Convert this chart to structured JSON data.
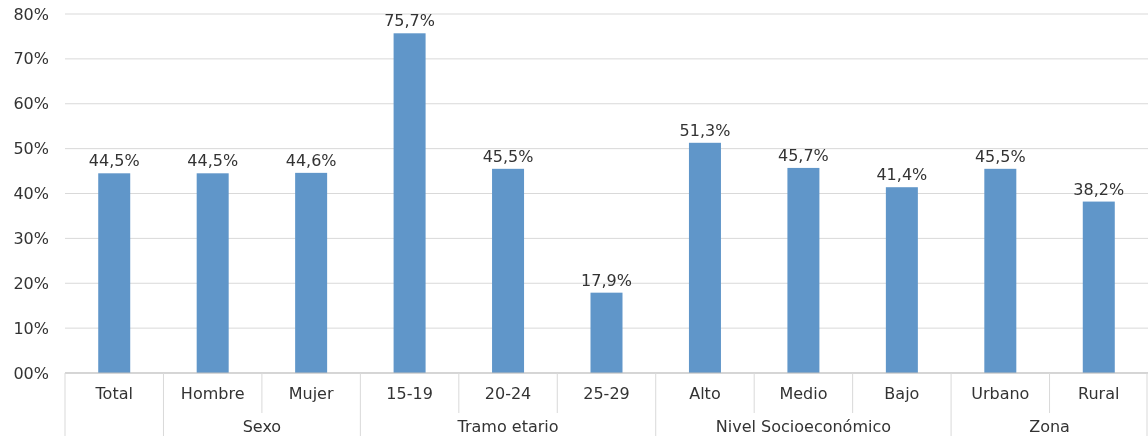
{
  "chart_data": {
    "type": "bar",
    "categories": [
      "Total",
      "Hombre",
      "Mujer",
      "15-19",
      "20-24",
      "25-29",
      "Alto",
      "Medio",
      "Bajo",
      "Urbano",
      "Rural"
    ],
    "values": [
      44.5,
      44.5,
      44.6,
      75.7,
      45.5,
      17.9,
      51.3,
      45.7,
      41.4,
      45.5,
      38.2
    ],
    "value_labels": [
      "44,5%",
      "44,5%",
      "44,6%",
      "75,7%",
      "45,5%",
      "17,9%",
      "51,3%",
      "45,7%",
      "41,4%",
      "45,5%",
      "38,2%"
    ],
    "color": "#6096c9",
    "ylim": [
      0,
      80
    ],
    "yticks": [
      {
        "value": 0,
        "label": "00%"
      },
      {
        "value": 10,
        "label": "10%"
      },
      {
        "value": 20,
        "label": "20%"
      },
      {
        "value": 30,
        "label": "30%"
      },
      {
        "value": 40,
        "label": "40%"
      },
      {
        "value": 50,
        "label": "50%"
      },
      {
        "value": 60,
        "label": "60%"
      },
      {
        "value": 70,
        "label": "70%"
      },
      {
        "value": 80,
        "label": "80%"
      }
    ],
    "grid": "y",
    "annotations": [
      "Sexo",
      "Tramo etario",
      "Nivel Socioeconómico",
      "Zona"
    ]
  }
}
